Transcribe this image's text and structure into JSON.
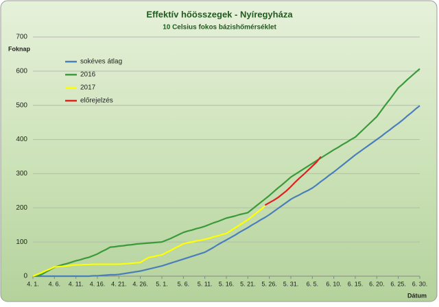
{
  "chart_data": {
    "type": "line",
    "title": "Effektív hőösszegek - Nyíregyháza",
    "subtitle": "10 Celsius fokos bázishőmérséklet",
    "y_label": "Foknap",
    "x_label": "Dátum",
    "categories": [
      "4. 1.",
      null,
      null,
      null,
      null,
      "4. 6.",
      null,
      null,
      null,
      null,
      "4. 11.",
      null,
      null,
      null,
      null,
      "4. 16.",
      null,
      null,
      null,
      null,
      "4. 21.",
      null,
      null,
      null,
      null,
      "4. 26.",
      null,
      null,
      null,
      null,
      "5. 1.",
      null,
      null,
      null,
      null,
      "5. 6.",
      null,
      null,
      null,
      null,
      "5. 11.",
      null,
      null,
      null,
      null,
      "5. 16.",
      null,
      null,
      null,
      null,
      "5. 21.",
      null,
      null,
      null,
      null,
      "5. 26.",
      null,
      null,
      null,
      null,
      "5. 31.",
      null,
      null,
      null,
      null,
      "6. 5.",
      null,
      null,
      null,
      null,
      "6. 10.",
      null,
      null,
      null,
      null,
      "6. 15.",
      null,
      null,
      null,
      null,
      "6. 20.",
      null,
      null,
      null,
      null,
      "6. 25.",
      null,
      null,
      null,
      null,
      "6. 30."
    ],
    "series": [
      {
        "name": "sokéves átlag",
        "color": "#4a7ebb",
        "values": [
          0,
          0,
          0,
          0,
          0,
          0,
          0,
          0,
          0,
          0,
          0,
          0,
          0,
          0,
          1,
          1,
          2,
          3,
          4,
          4,
          5,
          7,
          9,
          11,
          13,
          15,
          18,
          21,
          24,
          27,
          30,
          34,
          38,
          42,
          46,
          50,
          54,
          58,
          62,
          66,
          70,
          77,
          84,
          92,
          99,
          106,
          113,
          120,
          128,
          135,
          142,
          150,
          157,
          165,
          172,
          180,
          189,
          198,
          207,
          216,
          225,
          232,
          238,
          245,
          251,
          258,
          267,
          277,
          286,
          296,
          305,
          315,
          325,
          335,
          345,
          355,
          364,
          373,
          382,
          391,
          400,
          409,
          419,
          428,
          438,
          447,
          457,
          468,
          478,
          489,
          499
        ]
      },
      {
        "name": "2016",
        "color": "#3a9a3a",
        "values": [
          0,
          2,
          5,
          12,
          19,
          26,
          30,
          34,
          37,
          41,
          45,
          48,
          52,
          55,
          60,
          65,
          72,
          78,
          85,
          86,
          88,
          89,
          91,
          92,
          94,
          95,
          96,
          97,
          98,
          99,
          100,
          105,
          110,
          116,
          122,
          128,
          132,
          135,
          139,
          142,
          146,
          151,
          156,
          160,
          165,
          170,
          173,
          176,
          180,
          183,
          186,
          196,
          206,
          216,
          226,
          236,
          247,
          258,
          268,
          279,
          290,
          298,
          306,
          314,
          322,
          330,
          338,
          346,
          354,
          362,
          370,
          377,
          385,
          392,
          400,
          407,
          419,
          431,
          443,
          455,
          467,
          484,
          501,
          517,
          534,
          551,
          562,
          574,
          585,
          596,
          607
        ]
      },
      {
        "name": "2017",
        "color": "#ffff00",
        "values": [
          0,
          5,
          10,
          16,
          21,
          27,
          28,
          29,
          30,
          32,
          33,
          33,
          34,
          34,
          35,
          35,
          35,
          35,
          35,
          35,
          35,
          36,
          37,
          38,
          39,
          40,
          48,
          55,
          57,
          60,
          62,
          69,
          75,
          82,
          88,
          95,
          98,
          100,
          103,
          105,
          108,
          111,
          115,
          118,
          122,
          125,
          133,
          141,
          149,
          157,
          165,
          175,
          185,
          195,
          205,
          null,
          null,
          null,
          null,
          null,
          null,
          null,
          null,
          null,
          null,
          null,
          null,
          null,
          null,
          null,
          null,
          null,
          null,
          null,
          null,
          null,
          null,
          null,
          null,
          null,
          null,
          null,
          null,
          null,
          null,
          null,
          null,
          null,
          null,
          null,
          null
        ]
      },
      {
        "name": "előrejelzés",
        "color": "#e02020",
        "values": [
          null,
          null,
          null,
          null,
          null,
          null,
          null,
          null,
          null,
          null,
          null,
          null,
          null,
          null,
          null,
          null,
          null,
          null,
          null,
          null,
          null,
          null,
          null,
          null,
          null,
          null,
          null,
          null,
          null,
          null,
          null,
          null,
          null,
          null,
          null,
          null,
          null,
          null,
          null,
          null,
          null,
          null,
          null,
          null,
          null,
          null,
          null,
          null,
          null,
          null,
          null,
          null,
          null,
          null,
          208,
          215,
          222,
          230,
          240,
          250,
          262,
          275,
          287,
          298,
          310,
          322,
          334,
          350,
          null,
          null,
          null,
          null,
          null,
          null,
          null,
          null,
          null,
          null,
          null,
          null,
          null,
          null,
          null,
          null,
          null,
          null,
          null,
          null,
          null,
          null,
          null
        ]
      }
    ],
    "ylim": [
      0,
      700
    ],
    "yticks": [
      0,
      100,
      200,
      300,
      400,
      500,
      600,
      700
    ],
    "grid": true,
    "legend": "upper left"
  }
}
